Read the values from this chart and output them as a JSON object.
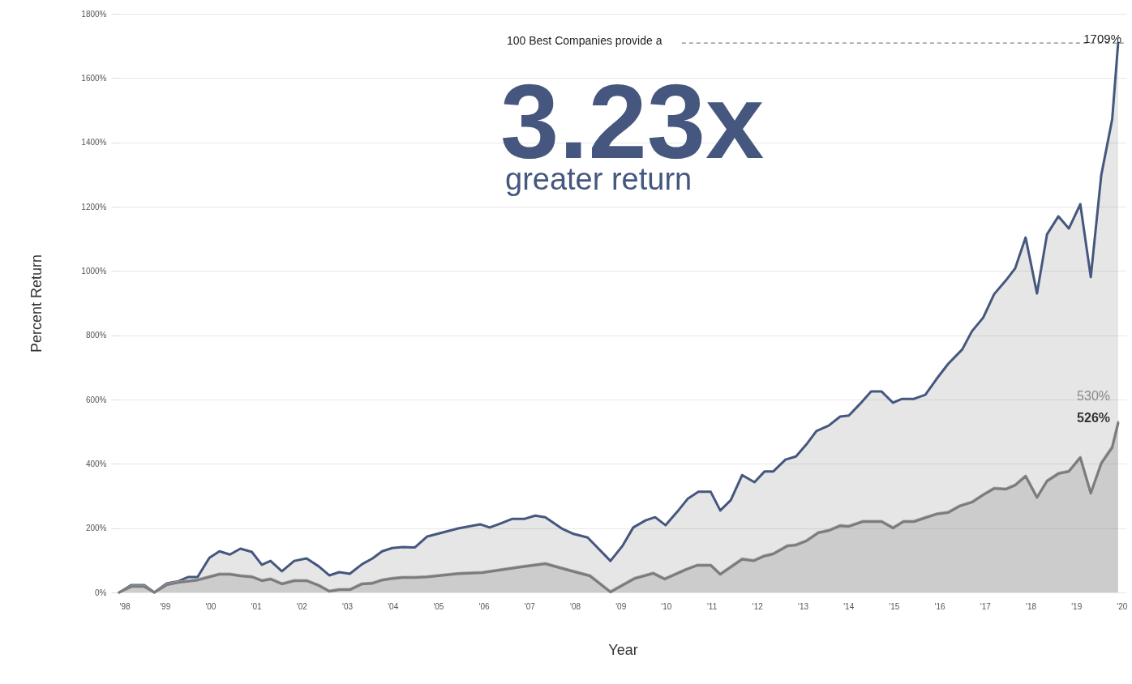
{
  "chart_data": {
    "type": "area",
    "xlabel": "Year",
    "ylabel": "Percent Return",
    "xlim": [
      1998,
      2020.1
    ],
    "xticks": [
      {
        "value": 1998,
        "label": "'98"
      },
      {
        "value": 1999,
        "label": "'99"
      },
      {
        "value": 2000,
        "label": "'00"
      },
      {
        "value": 2001,
        "label": "'01"
      },
      {
        "value": 2002,
        "label": "'02"
      },
      {
        "value": 2003,
        "label": "'03"
      },
      {
        "value": 2004,
        "label": "'04"
      },
      {
        "value": 2005,
        "label": "'05"
      },
      {
        "value": 2006,
        "label": "'06"
      },
      {
        "value": 2007,
        "label": "'07"
      },
      {
        "value": 2008,
        "label": "'08"
      },
      {
        "value": 2009,
        "label": "'09"
      },
      {
        "value": 2010,
        "label": "'10"
      },
      {
        "value": 2011,
        "label": "'11"
      },
      {
        "value": 2012,
        "label": "'12"
      },
      {
        "value": 2013,
        "label": "'13"
      },
      {
        "value": 2014,
        "label": "'14"
      },
      {
        "value": 2015,
        "label": "'15"
      },
      {
        "value": 2016,
        "label": "'16"
      },
      {
        "value": 2017,
        "label": "'17"
      },
      {
        "value": 2018,
        "label": "'18"
      },
      {
        "value": 2019,
        "label": "'19"
      },
      {
        "value": 2020,
        "label": "'20"
      }
    ],
    "ylim": [
      0,
      1800
    ],
    "yticks": [
      {
        "value": 0,
        "label": "0%"
      },
      {
        "value": 200,
        "label": "200%"
      },
      {
        "value": 400,
        "label": "400%"
      },
      {
        "value": 600,
        "label": "600%"
      },
      {
        "value": 800,
        "label": "800%"
      },
      {
        "value": 1000,
        "label": "1000%"
      },
      {
        "value": 1200,
        "label": "1200%"
      },
      {
        "value": 1400,
        "label": "1400%"
      },
      {
        "value": 1600,
        "label": "1600%"
      },
      {
        "value": 1800,
        "label": "1800%"
      }
    ],
    "grid": "y",
    "series": [
      {
        "color": "#46577f",
        "x": [
          1998,
          1998.27,
          1998.55,
          1998.77,
          1999.04,
          1999.3,
          1999.52,
          1999.72,
          1999.98,
          2000.2,
          2000.43,
          2000.66,
          2000.91,
          2001.13,
          2001.32,
          2001.57,
          2001.84,
          2002.11,
          2002.38,
          2002.61,
          2002.83,
          2003.06,
          2003.33,
          2003.56,
          2003.77,
          2003.99,
          2004.22,
          2004.49,
          2004.76,
          2005.44,
          2005.92,
          2006.13,
          2006.36,
          2006.63,
          2006.9,
          2007.13,
          2007.35,
          2007.71,
          2007.97,
          2008.28,
          2008.78,
          2009.05,
          2009.28,
          2009.55,
          2009.76,
          2009.99,
          2010.24,
          2010.48,
          2010.71,
          2010.98,
          2011.19,
          2011.42,
          2011.67,
          2011.94,
          2012.16,
          2012.35,
          2012.62,
          2012.85,
          2013.1,
          2013.3,
          2013.57,
          2013.82,
          2014.01,
          2014.26,
          2014.5,
          2014.73,
          2014.98,
          2015.18,
          2015.44,
          2015.69,
          2015.93,
          2016.19,
          2016.5,
          2016.71,
          2016.96,
          2017.2,
          2017.46,
          2017.66,
          2017.89,
          2018.14,
          2018.36,
          2018.61,
          2018.84,
          2019.09,
          2019.32,
          2019.55,
          2019.79,
          2019.92
        ],
        "values": [
          0,
          23,
          23,
          0,
          28,
          35,
          48,
          48,
          108,
          128,
          118,
          136,
          126,
          86,
          98,
          66,
          98,
          106,
          81,
          53,
          63,
          58,
          88,
          106,
          128,
          138,
          141,
          140,
          174,
          199,
          212,
          202,
          214,
          229,
          229,
          239,
          234,
          199,
          182,
          171,
          98,
          146,
          202,
          224,
          234,
          209,
          250,
          292,
          313,
          313,
          255,
          287,
          365,
          343,
          376,
          376,
          413,
          423,
          464,
          502,
          519,
          547,
          550,
          587,
          625,
          625,
          590,
          602,
          602,
          615,
          663,
          711,
          756,
          812,
          855,
          928,
          971,
          1008,
          1104,
          930,
          1114,
          1170,
          1132,
          1208,
          981,
          1298,
          1472,
          1709
        ]
      },
      {
        "color": "#a3a3a3",
        "x": [
          1998,
          1998.27,
          1998.55,
          1998.77,
          1999.04,
          1999.3,
          1999.72,
          1999.98,
          2000.2,
          2000.43,
          2000.66,
          2000.91,
          2001.13,
          2001.32,
          2001.57,
          2001.84,
          2002.11,
          2002.38,
          2002.61,
          2002.83,
          2003.06,
          2003.33,
          2003.56,
          2003.77,
          2003.99,
          2004.22,
          2004.49,
          2004.76,
          2005.44,
          2005.97,
          2006.81,
          2007.35,
          2007.88,
          2008.33,
          2008.78,
          2009.31,
          2009.72,
          2009.97,
          2010.44,
          2010.69,
          2010.98,
          2011.19,
          2011.67,
          2011.92,
          2012.16,
          2012.35,
          2012.66,
          2012.85,
          2013.07,
          2013.34,
          2013.57,
          2013.82,
          2014.01,
          2014.32,
          2014.73,
          2014.98,
          2015.21,
          2015.44,
          2015.69,
          2015.93,
          2016.19,
          2016.44,
          2016.71,
          2016.96,
          2017.2,
          2017.46,
          2017.66,
          2017.89,
          2018.14,
          2018.36,
          2018.61,
          2018.84,
          2019.09,
          2019.32,
          2019.55,
          2019.79,
          2019.92
        ],
        "values": [
          0,
          20,
          20,
          0,
          25,
          33,
          40,
          50,
          58,
          58,
          53,
          50,
          38,
          43,
          28,
          38,
          38,
          23,
          5,
          10,
          10,
          28,
          30,
          40,
          45,
          48,
          48,
          50,
          60,
          63,
          81,
          91,
          70,
          53,
          3,
          45,
          61,
          43,
          73,
          86,
          86,
          58,
          105,
          100,
          115,
          121,
          146,
          149,
          161,
          187,
          194,
          209,
          207,
          222,
          222,
          202,
          222,
          222,
          234,
          245,
          250,
          270,
          282,
          305,
          325,
          323,
          335,
          363,
          297,
          348,
          371,
          378,
          421,
          310,
          403,
          454,
          530
        ]
      },
      {
        "color": "#7c7c7c",
        "x": [
          1998,
          1998.27,
          1998.55,
          1998.77,
          1999.04,
          1999.3,
          1999.72,
          1999.98,
          2000.2,
          2000.43,
          2000.66,
          2000.91,
          2001.13,
          2001.32,
          2001.57,
          2001.84,
          2002.11,
          2002.38,
          2002.61,
          2002.83,
          2003.06,
          2003.33,
          2003.56,
          2003.77,
          2003.99,
          2004.22,
          2004.49,
          2004.76,
          2005.44,
          2005.97,
          2006.81,
          2007.35,
          2007.88,
          2008.33,
          2008.78,
          2009.31,
          2009.72,
          2009.97,
          2010.44,
          2010.69,
          2010.98,
          2011.19,
          2011.67,
          2011.92,
          2012.16,
          2012.35,
          2012.66,
          2012.85,
          2013.07,
          2013.34,
          2013.57,
          2013.82,
          2014.01,
          2014.32,
          2014.73,
          2014.98,
          2015.21,
          2015.44,
          2015.69,
          2015.93,
          2016.19,
          2016.44,
          2016.71,
          2016.96,
          2017.2,
          2017.46,
          2017.66,
          2017.89,
          2018.14,
          2018.36,
          2018.61,
          2018.84,
          2019.09,
          2019.32,
          2019.55,
          2019.79,
          2019.92
        ],
        "values": [
          0,
          18,
          18,
          0,
          23,
          31,
          38,
          48,
          56,
          56,
          51,
          48,
          36,
          41,
          26,
          36,
          36,
          21,
          3,
          8,
          8,
          26,
          28,
          38,
          43,
          46,
          46,
          48,
          58,
          61,
          79,
          89,
          68,
          51,
          1,
          43,
          59,
          41,
          71,
          84,
          84,
          56,
          103,
          98,
          113,
          119,
          144,
          147,
          159,
          185,
          192,
          207,
          205,
          220,
          220,
          200,
          220,
          220,
          232,
          243,
          248,
          268,
          280,
          303,
          323,
          321,
          333,
          361,
          295,
          346,
          369,
          376,
          419,
          308,
          401,
          450,
          526
        ]
      }
    ],
    "ref_lines": [
      {
        "axis": "y",
        "value": 1709,
        "label": "100 Best Companies provide a",
        "line_style": "dashed",
        "color": "#666666"
      }
    ],
    "annotations": [
      "3.23x",
      "greater return",
      "1709%",
      "530%",
      "526%"
    ]
  }
}
